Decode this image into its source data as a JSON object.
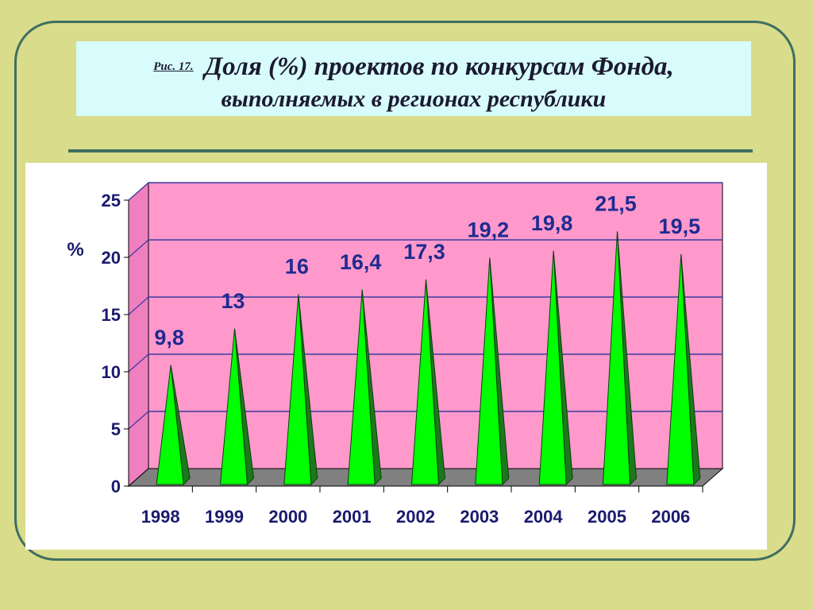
{
  "slide": {
    "figure_label": "Рис. 17.",
    "title_line1": "Доля (%) проектов по конкурсам Фонда,",
    "title_line2": "выполняемых  в регионах республики"
  },
  "colors": {
    "background": "#d9dc8a",
    "frame": "#3f6f62",
    "title_bg": "#d8fbfb",
    "plot_wall": "#ff99cc",
    "floor": "#808080",
    "cone_light": "#00ff00",
    "cone_dark": "#1a7a1a",
    "gridline": "#3a3aa0",
    "label_text": "#1f2b8f"
  },
  "chart_data": {
    "type": "bar",
    "bar_shape": "cone-3d",
    "categories": [
      "1998",
      "1999",
      "2000",
      "2001",
      "2002",
      "2003",
      "2004",
      "2005",
      "2006"
    ],
    "values": [
      9.8,
      13,
      16,
      16.4,
      17.3,
      19.2,
      19.8,
      21.5,
      19.5
    ],
    "data_labels": [
      "9,8",
      "13",
      "16",
      "16,4",
      "17,3",
      "19,2",
      "19,8",
      "21,5",
      "19,5"
    ],
    "ylabel": "%",
    "ylim": [
      0,
      25
    ],
    "yticks": [
      0,
      5,
      10,
      15,
      20,
      25
    ],
    "grid": true
  }
}
